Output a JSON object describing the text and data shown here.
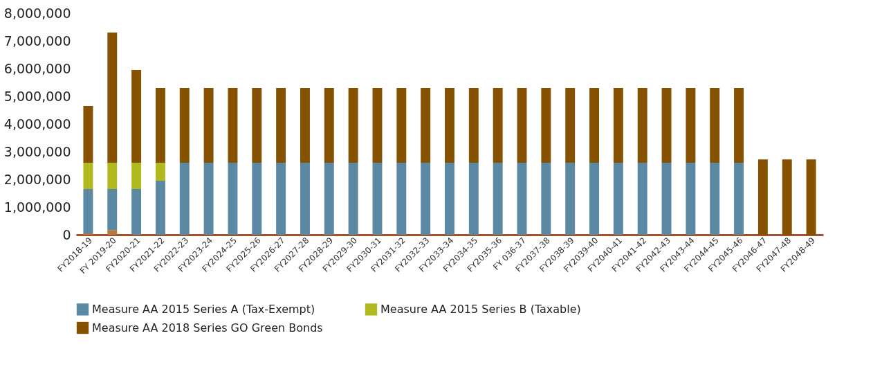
{
  "chart_data": {
    "type": "bar",
    "stacked": true,
    "categories": [
      "FY2018-19",
      "FY 2019-20",
      "FY2020-21",
      "FY2021-22",
      "FY2022-23",
      "FY2023-24",
      "FY2024-25",
      "FY2025-26",
      "FY2026-27",
      "FY2027-28",
      "FY2028-29",
      "FY2029-30",
      "FY2030-31",
      "FY2031-32",
      "FY2032-33",
      "FY2033-34",
      "FY2034-35",
      "FY2035-36",
      "FY 036-37",
      "FY2037-38",
      "FY2038-39",
      "FY2039-40",
      "FY2040-41",
      "FY2041-42",
      "FY2042-43",
      "FY2043-44",
      "FY2044-45",
      "FY2045-46",
      "FY2046-47",
      "FY2047-48",
      "FY2048-49"
    ],
    "series": [
      {
        "color": "#b87a3c",
        "values": [
          50000,
          170000,
          0,
          0,
          0,
          0,
          0,
          0,
          0,
          0,
          0,
          0,
          0,
          0,
          0,
          0,
          0,
          0,
          0,
          0,
          0,
          0,
          0,
          0,
          0,
          0,
          0,
          0,
          0,
          0,
          0
        ]
      },
      {
        "name": "Measure AA 2015 Series A (Tax-Exempt)",
        "color": "#5b88a2",
        "values": [
          1600000,
          1480000,
          1650000,
          1950000,
          2600000,
          2600000,
          2600000,
          2600000,
          2600000,
          2600000,
          2600000,
          2600000,
          2600000,
          2600000,
          2600000,
          2600000,
          2600000,
          2600000,
          2600000,
          2600000,
          2600000,
          2600000,
          2600000,
          2600000,
          2600000,
          2600000,
          2600000,
          2600000,
          0,
          0,
          0
        ]
      },
      {
        "name": "Measure AA 2015 Series B (Taxable)",
        "color": "#b0ba1e",
        "values": [
          950000,
          950000,
          950000,
          650000,
          0,
          0,
          0,
          0,
          0,
          0,
          0,
          0,
          0,
          0,
          0,
          0,
          0,
          0,
          0,
          0,
          0,
          0,
          0,
          0,
          0,
          0,
          0,
          0,
          0,
          0,
          0
        ]
      },
      {
        "name": "Measure AA 2018 Series GO Green Bonds",
        "color": "#875200",
        "values": [
          2050000,
          4700000,
          3350000,
          2700000,
          2700000,
          2700000,
          2700000,
          2700000,
          2700000,
          2700000,
          2700000,
          2700000,
          2700000,
          2700000,
          2700000,
          2700000,
          2700000,
          2700000,
          2700000,
          2700000,
          2700000,
          2700000,
          2700000,
          2700000,
          2700000,
          2700000,
          2700000,
          2700000,
          2720000,
          2720000,
          2720000
        ]
      }
    ],
    "ylim": [
      0,
      8000000
    ],
    "yticks": [
      0,
      {
        "value": 1000000,
        "label": "1,000,000"
      },
      {
        "value": 2000000,
        "label": "2,000,000"
      },
      {
        "value": 3000000,
        "label": "3,000,000"
      },
      {
        "value": 4000000,
        "label": "4,000,000"
      },
      {
        "value": 5000000,
        "label": "5,000,000"
      },
      {
        "value": 6000000,
        "label": "6,000,000"
      },
      {
        "value": 7000000,
        "label": "7,000,000"
      },
      {
        "value": 8000000,
        "label": "8,000,000"
      }
    ],
    "grid": false,
    "legend": "bottom left"
  }
}
